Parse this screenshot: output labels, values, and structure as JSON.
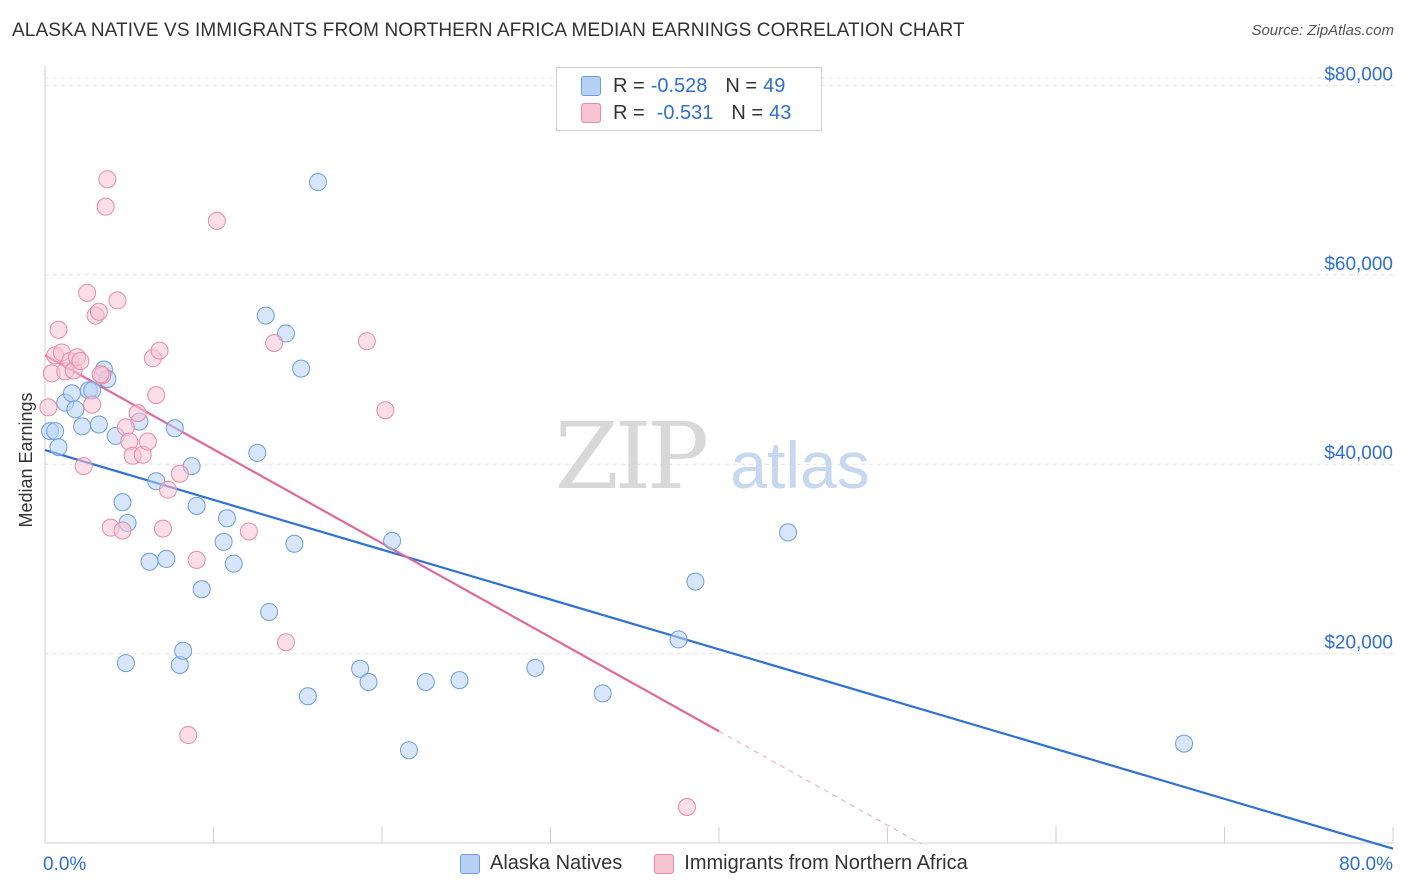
{
  "title": "ALASKA NATIVE VS IMMIGRANTS FROM NORTHERN AFRICA MEDIAN EARNINGS CORRELATION CHART",
  "source": "Source: ZipAtlas.com",
  "watermark": {
    "zip": "ZIP",
    "atlas": "atlas"
  },
  "legend": {
    "rows": [
      {
        "r_label": "R =",
        "r_value": "-0.528",
        "n_label": "N =",
        "n_value": "49"
      },
      {
        "r_label": "R =",
        "r_value": "-0.531",
        "n_label": "N =",
        "n_value": "43"
      }
    ]
  },
  "colors": {
    "blue_fill": "#b7d1f5",
    "blue_stroke": "#6d9de0",
    "blue_line": "#2f72d3",
    "pink_fill": "#f8c3d3",
    "pink_stroke": "#e98aa8",
    "pink_line": "#e0689a",
    "axis_label": "#2f6fd0",
    "grid": "#e4e4e4"
  },
  "chart_data": {
    "type": "scatter",
    "title": "ALASKA NATIVE VS IMMIGRANTS FROM NORTHERN AFRICA MEDIAN EARNINGS CORRELATION CHART",
    "xlabel": "",
    "ylabel": "Median Earnings",
    "xlim": [
      0,
      80
    ],
    "ylim": [
      0,
      81000
    ],
    "x_tick_labels": [
      "0.0%",
      "80.0%"
    ],
    "y_ticks": [
      20000,
      40000,
      60000,
      80000
    ],
    "y_tick_labels": [
      "$20,000",
      "$40,000",
      "$60,000",
      "$80,000"
    ],
    "grid": true,
    "legend_position": "bottom",
    "series": [
      {
        "name": "Alaska Natives",
        "color": "#6d9de0",
        "points": [
          [
            0.3,
            43500
          ],
          [
            0.6,
            43500
          ],
          [
            0.8,
            41800
          ],
          [
            1.2,
            46500
          ],
          [
            1.6,
            47500
          ],
          [
            1.8,
            45800
          ],
          [
            2.2,
            44000
          ],
          [
            2.6,
            47800
          ],
          [
            2.8,
            47800
          ],
          [
            3.2,
            44200
          ],
          [
            3.5,
            50000
          ],
          [
            3.7,
            49000
          ],
          [
            4.2,
            43000
          ],
          [
            4.6,
            36000
          ],
          [
            4.9,
            33800
          ],
          [
            5.6,
            44500
          ],
          [
            6.2,
            29700
          ],
          [
            6.6,
            38200
          ],
          [
            7.2,
            30000
          ],
          [
            7.7,
            43800
          ],
          [
            8.0,
            18800
          ],
          [
            8.2,
            20300
          ],
          [
            8.7,
            39800
          ],
          [
            9.0,
            35600
          ],
          [
            9.3,
            26800
          ],
          [
            10.6,
            31800
          ],
          [
            10.8,
            34300
          ],
          [
            11.2,
            29500
          ],
          [
            12.6,
            41200
          ],
          [
            13.1,
            55700
          ],
          [
            13.3,
            24400
          ],
          [
            14.3,
            53800
          ],
          [
            14.8,
            31600
          ],
          [
            15.2,
            50100
          ],
          [
            15.6,
            15500
          ],
          [
            16.2,
            69800
          ],
          [
            18.7,
            18400
          ],
          [
            19.2,
            17000
          ],
          [
            20.6,
            31900
          ],
          [
            21.6,
            9800
          ],
          [
            22.6,
            17000
          ],
          [
            24.6,
            17200
          ],
          [
            29.1,
            18500
          ],
          [
            33.1,
            15800
          ],
          [
            37.6,
            21500
          ],
          [
            38.6,
            27600
          ],
          [
            44.1,
            32800
          ],
          [
            67.6,
            10500
          ],
          [
            4.8,
            19000
          ]
        ]
      },
      {
        "name": "Immigrants from Northern Africa",
        "color": "#e98aa8",
        "points": [
          [
            0.2,
            46000
          ],
          [
            0.4,
            49600
          ],
          [
            0.6,
            51500
          ],
          [
            0.8,
            54200
          ],
          [
            1.0,
            51800
          ],
          [
            1.2,
            49800
          ],
          [
            1.5,
            50900
          ],
          [
            1.7,
            49900
          ],
          [
            1.9,
            51300
          ],
          [
            2.1,
            50900
          ],
          [
            2.3,
            39800
          ],
          [
            2.5,
            58100
          ],
          [
            2.8,
            46300
          ],
          [
            3.0,
            55700
          ],
          [
            3.2,
            56100
          ],
          [
            3.4,
            49400
          ],
          [
            3.6,
            67200
          ],
          [
            3.7,
            70100
          ],
          [
            3.9,
            33300
          ],
          [
            4.3,
            57300
          ],
          [
            4.6,
            33000
          ],
          [
            4.8,
            43900
          ],
          [
            5.0,
            42400
          ],
          [
            5.2,
            40900
          ],
          [
            5.5,
            45400
          ],
          [
            5.8,
            41000
          ],
          [
            6.1,
            42400
          ],
          [
            6.4,
            51200
          ],
          [
            6.6,
            47300
          ],
          [
            6.8,
            52000
          ],
          [
            7.0,
            33200
          ],
          [
            7.3,
            37300
          ],
          [
            8.0,
            39000
          ],
          [
            8.5,
            11400
          ],
          [
            9.0,
            29900
          ],
          [
            10.2,
            65700
          ],
          [
            12.1,
            32900
          ],
          [
            13.6,
            52800
          ],
          [
            14.3,
            21200
          ],
          [
            19.1,
            53000
          ],
          [
            20.2,
            45700
          ],
          [
            38.1,
            3800
          ],
          [
            3.3,
            49500
          ]
        ]
      }
    ],
    "trend_lines": [
      {
        "series": "Alaska Natives",
        "x": [
          0,
          80
        ],
        "y": [
          41500,
          -600
        ],
        "dashed_from_x": null
      },
      {
        "series": "Immigrants from Northern Africa",
        "x": [
          0,
          40
        ],
        "y": [
          51500,
          11800
        ],
        "dashed_to_x": 52,
        "dashed_to_y": -100
      }
    ]
  },
  "bottom_legend": [
    "Alaska Natives",
    "Immigrants from Northern Africa"
  ]
}
